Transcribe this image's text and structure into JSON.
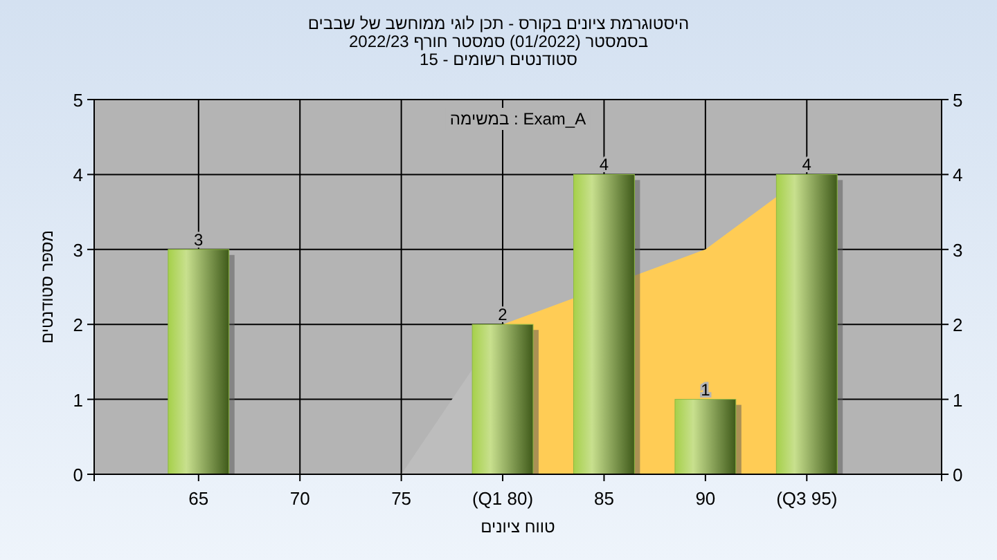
{
  "chart_data": {
    "type": "bar",
    "title": "היסטוגרמת ציונים בקורס - תכן לוגי ממוחשב של שבבים",
    "subtitle": "בסמסטר  (01/2022)  סמסטר חורף 2022/23\nסטודנטים רשומים - 15",
    "xlabel": "טווח ציונים",
    "ylabel": "מספר סטודנטים",
    "annotations": [
      "במשימה : Exam_A"
    ],
    "categories": [
      "65",
      "70",
      "75",
      "(Q1 80)",
      "85",
      "90",
      "(Q3 95)"
    ],
    "series": [
      {
        "type": "area",
        "color": "#bdbdbd",
        "values": [
          null,
          null,
          0,
          2,
          null,
          null,
          null
        ]
      },
      {
        "type": "area",
        "color": "#ffcc55",
        "values": [
          null,
          null,
          null,
          2,
          null,
          3,
          4
        ]
      },
      {
        "color": "#8db843",
        "values": [
          3,
          0,
          0,
          2,
          4,
          1,
          4
        ],
        "value_labels": [
          "3",
          null,
          null,
          "2",
          "4",
          "1",
          "4"
        ]
      }
    ],
    "ylim": [
      0,
      5
    ],
    "yticks": [
      0,
      1,
      2,
      3,
      4,
      5
    ],
    "y2lim": [
      0,
      5
    ],
    "y2ticks": [
      0,
      1,
      2,
      3,
      4,
      5
    ],
    "grid": true
  }
}
